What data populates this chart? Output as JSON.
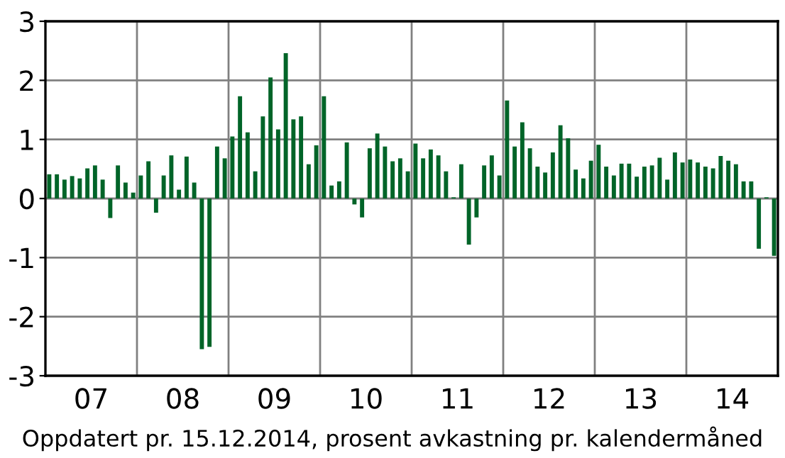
{
  "chart_data": {
    "type": "bar",
    "categories": [
      null,
      null,
      null,
      null,
      null,
      "07",
      null,
      null,
      null,
      null,
      null,
      null,
      null,
      null,
      null,
      null,
      null,
      "08",
      null,
      null,
      null,
      null,
      null,
      null,
      null,
      null,
      null,
      null,
      null,
      "09",
      null,
      null,
      null,
      null,
      null,
      null,
      null,
      null,
      null,
      null,
      null,
      "10",
      null,
      null,
      null,
      null,
      null,
      null,
      null,
      null,
      null,
      null,
      null,
      "11",
      null,
      null,
      null,
      null,
      null,
      null,
      null,
      null,
      null,
      null,
      null,
      "12",
      null,
      null,
      null,
      null,
      null,
      null,
      null,
      null,
      null,
      null,
      null,
      "13",
      null,
      null,
      null,
      null,
      null,
      null,
      null,
      null,
      null,
      null,
      null,
      "14",
      null,
      null,
      null,
      null,
      null,
      null
    ],
    "values": [
      0.41,
      0.41,
      0.32,
      0.38,
      0.34,
      0.51,
      0.56,
      0.32,
      -0.33,
      0.56,
      0.27,
      0.1,
      0.39,
      0.63,
      -0.24,
      0.39,
      0.73,
      0.15,
      0.71,
      0.27,
      -2.55,
      -2.51,
      0.88,
      0.68,
      1.05,
      1.73,
      1.12,
      0.46,
      1.39,
      2.05,
      1.17,
      2.46,
      1.34,
      1.39,
      0.58,
      0.9,
      1.73,
      0.22,
      0.29,
      0.95,
      -0.1,
      -0.32,
      0.85,
      1.1,
      0.88,
      0.63,
      0.68,
      0.46,
      0.93,
      0.68,
      0.83,
      0.73,
      0.46,
      0.02,
      0.58,
      -0.78,
      -0.32,
      0.56,
      0.73,
      0.39,
      1.66,
      0.88,
      1.29,
      0.85,
      0.54,
      0.44,
      0.78,
      1.24,
      1.02,
      0.49,
      0.34,
      0.64,
      0.91,
      0.54,
      0.39,
      0.59,
      0.59,
      0.37,
      0.54,
      0.56,
      0.69,
      0.32,
      0.78,
      0.61,
      0.66,
      0.61,
      0.54,
      0.51,
      0.72,
      0.64,
      0.58,
      0.29,
      0.29,
      -0.85,
      0.02,
      -0.97
    ],
    "color": "#006428",
    "ylim": [
      -3,
      3
    ],
    "yticks": [
      -3,
      -2,
      -1,
      0,
      1,
      2,
      3
    ],
    "grid": true,
    "annotations": [
      "Oppdatert pr. 15.12.2014, prosent avkastning pr. kalendermåned"
    ]
  }
}
